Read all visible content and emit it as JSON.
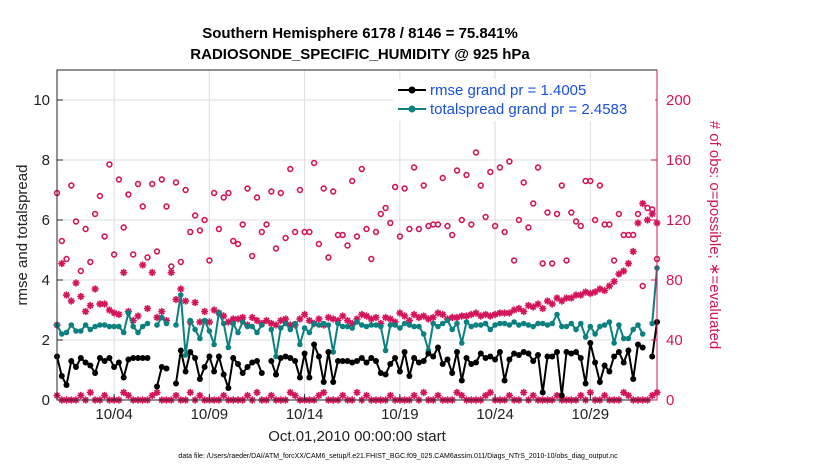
{
  "chart_data": {
    "type": "line",
    "title": "Southern Hemisphere 6178 / 8146 = 75.841%",
    "subtitle": "RADIOSONDE_SPECIFIC_HUMIDITY @ 925 hPa",
    "xlabel": "Oct.01,2010 00:00:00 start",
    "ylabel": "rmse and totalspread",
    "ylabel_right": "# of obs: o=possible; ∗=evaluated",
    "footer": "data file: /Users/raeder/DAI/ATM_forcXX/CAM6_setup/f.e21.FHIST_BGC.f09_025.CAM6assim.011/Diags_NTrS_2010-10/obs_diag_output.nc",
    "xlim": [
      1.0,
      32.5
    ],
    "ylim": [
      0,
      11
    ],
    "ylim_right": [
      0,
      220
    ],
    "x_ticks": [
      4,
      9,
      14,
      19,
      24,
      29
    ],
    "x_tick_labels": [
      "10/04",
      "10/09",
      "10/14",
      "10/19",
      "10/24",
      "10/29"
    ],
    "y_ticks": [
      0,
      2,
      4,
      6,
      8,
      10
    ],
    "y_tick_labels": [
      "0",
      "2",
      "4",
      "6",
      "8",
      "10"
    ],
    "y_ticks_right": [
      0,
      40,
      80,
      120,
      160,
      200
    ],
    "y_tick_labels_right": [
      "0",
      "40",
      "80",
      "120",
      "160",
      "200"
    ],
    "colors": {
      "rmse": "#000000",
      "spread": "#0a8080",
      "obs": "#d4145a",
      "legend_text": "#1a50e0",
      "grid": "#dddddd"
    },
    "legend": {
      "placement": "top-right",
      "entries": [
        "rmse grand pr = 1.4005",
        "totalspread grand pr = 2.4583"
      ]
    },
    "x": [
      1.0,
      1.25,
      1.5,
      1.75,
      2.0,
      2.25,
      2.5,
      2.75,
      3.0,
      3.25,
      3.5,
      3.75,
      4.0,
      4.25,
      4.5,
      4.75,
      5.0,
      5.25,
      5.5,
      5.75,
      6.0,
      6.25,
      6.5,
      6.75,
      7.0,
      7.25,
      7.5,
      7.75,
      8.0,
      8.25,
      8.5,
      8.75,
      9.0,
      9.25,
      9.5,
      9.75,
      10.0,
      10.25,
      10.5,
      10.75,
      11.0,
      11.25,
      11.5,
      11.75,
      12.0,
      12.25,
      12.5,
      12.75,
      13.0,
      13.25,
      13.5,
      13.75,
      14.0,
      14.25,
      14.5,
      14.75,
      15.0,
      15.25,
      15.5,
      15.75,
      16.0,
      16.25,
      16.5,
      16.75,
      17.0,
      17.25,
      17.5,
      17.75,
      18.0,
      18.25,
      18.5,
      18.75,
      19.0,
      19.25,
      19.5,
      19.75,
      20.0,
      20.25,
      20.5,
      20.75,
      21.0,
      21.25,
      21.5,
      21.75,
      22.0,
      22.25,
      22.5,
      22.75,
      23.0,
      23.25,
      23.5,
      23.75,
      24.0,
      24.25,
      24.5,
      24.75,
      25.0,
      25.25,
      25.5,
      25.75,
      26.0,
      26.25,
      26.5,
      26.75,
      27.0,
      27.25,
      27.5,
      27.75,
      28.0,
      28.25,
      28.5,
      28.75,
      29.0,
      29.25,
      29.5,
      29.75,
      30.0,
      30.25,
      30.5,
      30.75,
      31.0,
      31.25,
      31.5,
      31.75,
      32.0,
      32.25,
      32.5
    ],
    "series": [
      {
        "name": "rmse",
        "values": [
          1.45,
          0.8,
          0.5,
          1.3,
          1.1,
          1.4,
          1.25,
          1.15,
          0.9,
          1.4,
          1.3,
          1.4,
          1.1,
          1.25,
          0.75,
          1.35,
          1.4,
          1.4,
          1.4,
          1.4,
          null,
          0.45,
          1.1,
          1.05,
          null,
          0.55,
          1.65,
          0.95,
          1.6,
          1.4,
          0.7,
          1.1,
          1.45,
          0.95,
          1.45,
          0.85,
          0.4,
          1.4,
          1.2,
          0.9,
          1.1,
          1.25,
          1.3,
          0.9,
          null,
          1.3,
          0.85,
          1.4,
          1.45,
          1.4,
          1.3,
          0.75,
          1.55,
          0.75,
          1.85,
          1.45,
          0.6,
          1.6,
          0.6,
          1.3,
          1.3,
          1.3,
          1.25,
          1.3,
          1.4,
          1.25,
          1.4,
          1.3,
          0.9,
          0.85,
          1.2,
          1.4,
          0.95,
          1.6,
          0.8,
          1.4,
          1.25,
          1.3,
          1.55,
          1.45,
          1.75,
          1.2,
          1.35,
          0.9,
          1.6,
          0.65,
          1.4,
          1.2,
          1.25,
          1.55,
          1.4,
          1.45,
          1.35,
          1.6,
          0.65,
          1.35,
          1.55,
          1.5,
          1.6,
          1.55,
          1.3,
          1.5,
          0.25,
          1.45,
          1.45,
          1.6,
          0.15,
          1.6,
          1.55,
          1.6,
          1.4,
          0.55,
          1.9,
          1.25,
          0.6,
          1.15,
          0.95,
          1.45,
          1.6,
          1.25,
          1.65,
          0.7,
          1.85,
          1.75,
          null,
          1.45,
          2.6
        ]
      },
      {
        "name": "totalspread",
        "values": [
          2.5,
          2.2,
          2.25,
          2.5,
          2.3,
          2.3,
          2.5,
          2.35,
          2.45,
          2.5,
          2.5,
          2.45,
          2.45,
          2.45,
          2.25,
          2.9,
          2.45,
          2.25,
          2.45,
          2.55,
          null,
          2.5,
          2.75,
          2.55,
          null,
          2.5,
          3.5,
          1.5,
          2.65,
          2.35,
          2.05,
          2.65,
          2.3,
          1.85,
          2.9,
          2.55,
          1.75,
          2.55,
          2.25,
          2.6,
          2.45,
          2.45,
          2.25,
          2.5,
          null,
          2.35,
          1.45,
          2.4,
          2.55,
          2.35,
          2.55,
          1.85,
          2.4,
          2.25,
          2.55,
          2.5,
          2.55,
          2.5,
          1.6,
          2.55,
          2.45,
          2.45,
          2.4,
          2.6,
          2.5,
          2.45,
          2.5,
          2.5,
          2.45,
          1.65,
          2.5,
          2.5,
          2.4,
          2.55,
          2.5,
          2.45,
          2.45,
          2.2,
          1.65,
          2.55,
          2.45,
          2.55,
          2.65,
          2.35,
          2.55,
          1.9,
          2.6,
          2.45,
          2.5,
          2.5,
          2.55,
          2.35,
          2.5,
          2.55,
          2.55,
          2.5,
          2.6,
          2.5,
          2.55,
          2.5,
          2.45,
          2.55,
          2.55,
          2.5,
          2.55,
          2.85,
          2.45,
          2.45,
          2.55,
          2.35,
          2.55,
          2.1,
          2.45,
          2.2,
          2.45,
          2.5,
          2.6,
          1.9,
          2.5,
          2.05,
          2.05,
          2.35,
          2.5,
          2.2,
          null,
          2.55,
          4.4
        ]
      },
      {
        "name": "obs_possible",
        "axis": "right",
        "values": [
          138,
          106,
          94,
          143,
          119,
          86,
          114,
          92,
          124,
          136,
          109,
          157,
          97,
          147,
          115,
          137,
          97,
          144,
          129,
          95,
          144,
          99,
          147,
          129,
          89,
          145,
          92,
          140,
          112,
          123,
          113,
          120,
          93,
          138,
          114,
          135,
          138,
          106,
          104,
          117,
          141,
          96,
          135,
          112,
          117,
          139,
          101,
          138,
          108,
          154,
          112,
          140,
          112,
          112,
          158,
          104,
          141,
          95,
          139,
          110,
          110,
          103,
          146,
          109,
          154,
          114,
          94,
          112,
          124,
          128,
          118,
          142,
          109,
          141,
          114,
          155,
          114,
          143,
          116,
          117,
          117,
          148,
          116,
          110,
          153,
          120,
          150,
          117,
          165,
          143,
          122,
          152,
          116,
          155,
          112,
          159,
          93,
          120,
          145,
          115,
          131,
          155,
          91,
          125,
          91,
          124,
          143,
          93,
          125,
          119,
          116,
          146,
          146,
          120,
          143,
          117,
          117,
          93,
          124,
          110,
          110,
          110,
          124,
          76,
          128,
          127,
          94
        ]
      },
      {
        "name": "obs_evaluated",
        "axis": "right",
        "values": [
          50,
          91,
          70,
          66,
          78,
          69,
          59,
          63,
          74,
          64,
          64,
          60,
          58,
          57,
          85,
          59,
          53,
          56,
          90,
          61,
          85,
          55,
          59,
          53,
          85,
          67,
          74,
          66,
          52,
          65,
          52,
          59,
          52,
          60,
          58,
          56,
          52,
          54,
          54,
          55,
          50,
          55,
          53,
          51,
          53,
          51,
          50,
          53,
          54,
          50,
          50,
          54,
          57,
          53,
          51,
          54,
          50,
          55,
          54,
          53,
          56,
          53,
          51,
          54,
          57,
          56,
          54,
          55,
          51,
          55,
          54,
          52,
          58,
          56,
          53,
          57,
          55,
          56,
          54,
          55,
          58,
          57,
          54,
          55,
          55,
          56,
          56,
          57,
          58,
          56,
          57,
          56,
          57,
          58,
          58,
          58,
          60,
          61,
          59,
          63,
          62,
          64,
          61,
          66,
          64,
          68,
          66,
          68,
          68,
          70,
          70,
          72,
          71,
          72,
          74,
          73,
          76,
          79,
          84,
          86,
          91,
          99,
          118,
          131,
          120,
          124,
          118
        ]
      }
    ]
  }
}
